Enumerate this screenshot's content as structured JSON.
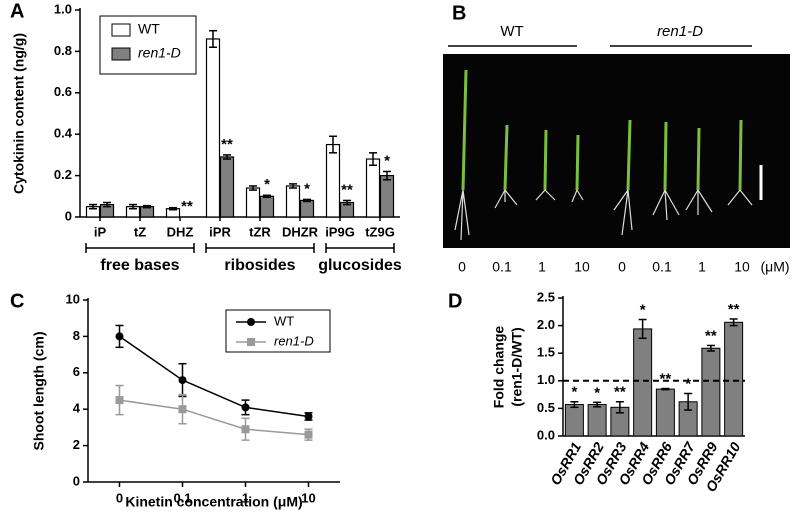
{
  "chart_data": [
    {
      "type": "grouped-bar",
      "panel_label": "A",
      "ylabel": "Cytokinin content (ng/g)",
      "groups": [
        {
          "name": "free bases",
          "categories": [
            "iP",
            "tZ",
            "DHZ"
          ]
        },
        {
          "name": "ribosides",
          "categories": [
            "iPR",
            "tZR",
            "DHZR"
          ]
        },
        {
          "name": "glucosides",
          "categories": [
            "iP9G",
            "tZ9G"
          ]
        }
      ],
      "series": [
        {
          "name": "WT",
          "color": "#ffffff",
          "values": [
            0.05,
            0.05,
            0.04,
            0.86,
            0.14,
            0.15,
            0.35,
            0.28
          ],
          "errors": [
            0.01,
            0.01,
            0.005,
            0.04,
            0.01,
            0.01,
            0.04,
            0.03
          ]
        },
        {
          "name": "ren1-D",
          "color": "#808080",
          "values": [
            0.06,
            0.05,
            0,
            0.29,
            0.1,
            0.08,
            0.07,
            0.2
          ],
          "errors": [
            0.01,
            0.005,
            0,
            0.01,
            0.005,
            0.005,
            0.01,
            0.02
          ],
          "significance": [
            null,
            null,
            "**",
            "**",
            "*",
            "*",
            "**",
            "*"
          ]
        }
      ],
      "ylim": [
        0,
        1
      ],
      "yticks": [
        0,
        0.2,
        0.4,
        0.6,
        0.8,
        {
          "value": 1,
          "label": "1.0"
        }
      ],
      "legend": "upper-left"
    },
    {
      "type": "line",
      "panel_label": "C",
      "ylabel": "Shoot length (cm)",
      "xlabel": "Kinetin concentration (μM)",
      "categories": [
        "0",
        "0.1",
        "1",
        "10"
      ],
      "series": [
        {
          "name": "WT",
          "color": "#000000",
          "values": [
            8.0,
            5.6,
            4.1,
            3.6
          ],
          "errors": [
            0.6,
            0.9,
            0.4,
            0.2
          ]
        },
        {
          "name": "ren1-D",
          "color": "#999999",
          "values": [
            4.5,
            4.0,
            2.9,
            2.6
          ],
          "errors": [
            0.8,
            0.8,
            0.6,
            0.3
          ]
        }
      ],
      "ylim": [
        0,
        10
      ],
      "yticks": [
        0,
        2,
        4,
        6,
        8,
        10
      ],
      "legend": "upper-right"
    },
    {
      "type": "bar",
      "panel_label": "D",
      "ylabel": [
        "Fold change",
        "(ren1-D/WT)"
      ],
      "categories": [
        "OsRR1",
        "OsRR2",
        "OsRR3",
        "OsRR4",
        "OsRR6",
        "OsRR7",
        "OsRR9",
        "OsRR10"
      ],
      "values": [
        0.57,
        0.57,
        0.52,
        1.94,
        0.85,
        0.62,
        1.59,
        2.06
      ],
      "errors": [
        0.05,
        0.04,
        0.1,
        0.17,
        0.01,
        0.15,
        0.05,
        0.06
      ],
      "significance": [
        "*",
        "*",
        "**",
        "*",
        "**",
        "*",
        "**",
        "**"
      ],
      "color": "#808080",
      "reference_line": 1,
      "ylim": [
        0,
        2.5
      ],
      "yticks": [
        {
          "value": 0,
          "label": "0.0"
        },
        0.5,
        {
          "value": 1,
          "label": "1.0"
        },
        1.5,
        {
          "value": 2,
          "label": "2.0"
        },
        2.5
      ]
    }
  ],
  "image_panel": {
    "label": "B",
    "groups": [
      "WT",
      "ren1-D"
    ],
    "concentrations": [
      "0",
      "0.1",
      "1",
      "10",
      "0",
      "0.1",
      "1",
      "10"
    ],
    "unit": "(μM)"
  }
}
